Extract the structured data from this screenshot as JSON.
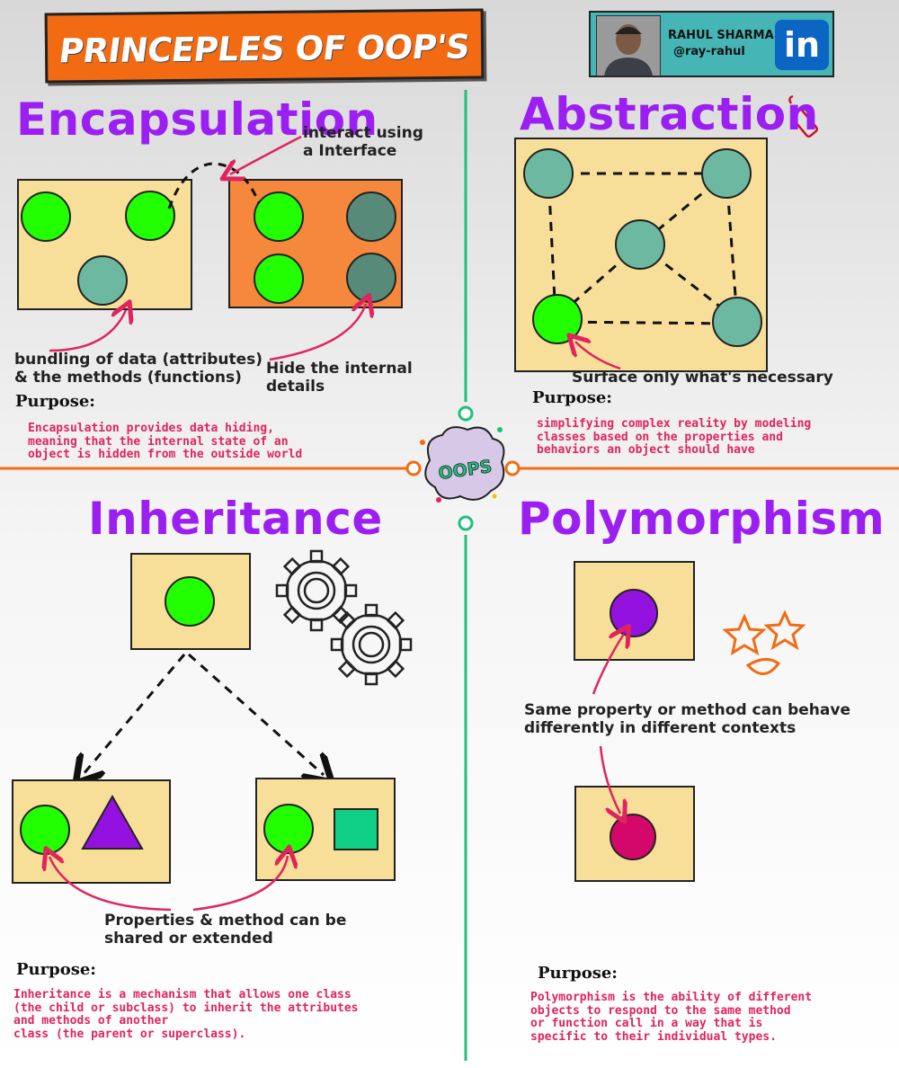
{
  "title": "PRINCEPLES OF OOP'S",
  "author": {
    "name": "RAHUL SHARMA",
    "handle": "@ray-rahul",
    "badge": "in"
  },
  "center_badge": "OOPS",
  "sections": {
    "encapsulation": {
      "heading": "Encapsulation",
      "note_interface": "interact using\na Interface",
      "note_bundling": "bundling of data (attributes)\n& the methods (functions)",
      "note_hide": "Hide the internal\ndetails",
      "purpose_label": "Purpose:",
      "purpose_text": "Encapsulation provides data hiding,\nmeaning that the internal state of an\nobject is hidden from the outside world"
    },
    "abstraction": {
      "heading": "Abstraction",
      "note_surface": "Surface only what's necessary",
      "purpose_label": "Purpose:",
      "purpose_text": "simplifying complex reality by modeling\nclasses based on the properties and\nbehaviors an object should have"
    },
    "inheritance": {
      "heading": "Inheritance",
      "note_shared": "Properties & method can be\n shared or extended",
      "purpose_label": "Purpose:",
      "purpose_text": "Inheritance is a mechanism that allows one class\n(the child or subclass) to inherit the attributes\nand methods of another\n class (the parent or superclass)."
    },
    "polymorphism": {
      "heading": "Polymorphism",
      "note_behave": "Same property or method can behave\n differently in different contexts",
      "purpose_label": "Purpose:",
      "purpose_text": "Polymorphism is the ability of different\n objects to respond to the same method\n or function call in a way that is\nspecific to their individual types."
    }
  },
  "colors": {
    "heading": "#9b1ff0",
    "box": "#f7df9a",
    "box_orange": "#f5883c",
    "green": "#22ff00",
    "teal": "#6db8a0",
    "dark_teal": "#578a78",
    "purple": "#9412e0",
    "magenta": "#d4086a",
    "emerald": "#0fcf86",
    "arrow": "#e0245e",
    "divider_green": "#1fc07d",
    "divider_orange": "#f26b13"
  }
}
